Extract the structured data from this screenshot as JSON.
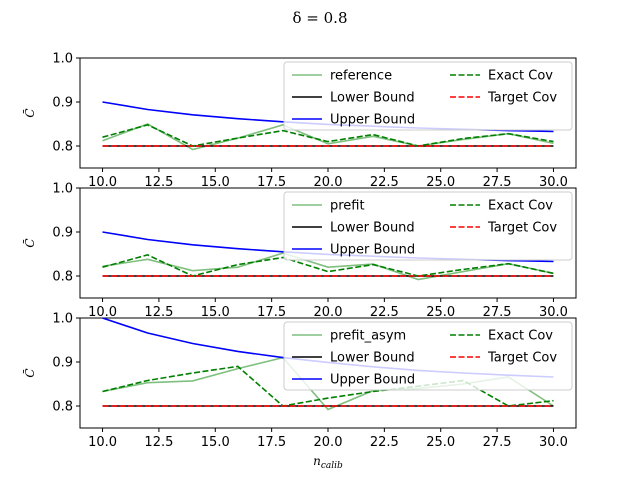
{
  "figure": {
    "title": "δ = 0.8",
    "xlabel": "n_calib",
    "xlabel_main": "n",
    "xlabel_sub": "calib",
    "ylabel": "C̄",
    "colors": {
      "exact": "#008000",
      "target": "#ff0000",
      "upper": "#0000ff",
      "lower": "#000000",
      "method": "#7fbf7f"
    }
  },
  "chart_data": [
    {
      "type": "line",
      "panel": "top",
      "xlim": [
        9,
        31
      ],
      "ylim": [
        0.75,
        1.0
      ],
      "xticks": [
        "10.0",
        "12.5",
        "15.0",
        "17.5",
        "20.0",
        "22.5",
        "25.0",
        "27.5",
        "30.0"
      ],
      "yticks": [
        "0.8",
        "0.9",
        "1.0"
      ],
      "legend_position": "upper right",
      "x": [
        10,
        12,
        14,
        16,
        18,
        20,
        22,
        24,
        26,
        28,
        30
      ],
      "series": [
        {
          "name": "reference",
          "style": "solid",
          "color": "#7fbf7f",
          "values": [
            0.812,
            0.85,
            0.792,
            0.818,
            0.848,
            0.805,
            0.822,
            0.8,
            0.815,
            0.828,
            0.806
          ]
        },
        {
          "name": "Lower Bound",
          "style": "solid",
          "color": "#000000",
          "values": [
            0.8,
            0.8,
            0.8,
            0.8,
            0.8,
            0.8,
            0.8,
            0.8,
            0.8,
            0.8,
            0.8
          ]
        },
        {
          "name": "Upper Bound",
          "style": "solid",
          "color": "#0000ff",
          "values": [
            0.9,
            0.883,
            0.871,
            0.862,
            0.855,
            0.849,
            0.845,
            0.841,
            0.838,
            0.835,
            0.833
          ]
        },
        {
          "name": "Exact Cov",
          "style": "dashed",
          "color": "#008000",
          "values": [
            0.82,
            0.848,
            0.8,
            0.818,
            0.835,
            0.81,
            0.826,
            0.8,
            0.817,
            0.828,
            0.81
          ]
        },
        {
          "name": "Target Cov",
          "style": "dashed",
          "color": "#ff0000",
          "values": [
            0.8,
            0.8,
            0.8,
            0.8,
            0.8,
            0.8,
            0.8,
            0.8,
            0.8,
            0.8,
            0.8
          ]
        }
      ]
    },
    {
      "type": "line",
      "panel": "middle",
      "xlim": [
        9,
        31
      ],
      "ylim": [
        0.75,
        1.0
      ],
      "xticks": [
        "10.0",
        "12.5",
        "15.0",
        "17.5",
        "20.0",
        "22.5",
        "25.0",
        "27.5",
        "30.0"
      ],
      "yticks": [
        "0.8",
        "0.9",
        "1.0"
      ],
      "legend_position": "upper right",
      "x": [
        10,
        12,
        14,
        16,
        18,
        20,
        22,
        24,
        26,
        28,
        30
      ],
      "series": [
        {
          "name": "prefit",
          "style": "solid",
          "color": "#7fbf7f",
          "values": [
            0.822,
            0.838,
            0.812,
            0.82,
            0.852,
            0.82,
            0.827,
            0.792,
            0.81,
            0.828,
            0.806
          ]
        },
        {
          "name": "Lower Bound",
          "style": "solid",
          "color": "#000000",
          "values": [
            0.8,
            0.8,
            0.8,
            0.8,
            0.8,
            0.8,
            0.8,
            0.8,
            0.8,
            0.8,
            0.8
          ]
        },
        {
          "name": "Upper Bound",
          "style": "solid",
          "color": "#0000ff",
          "values": [
            0.9,
            0.883,
            0.871,
            0.862,
            0.855,
            0.849,
            0.845,
            0.841,
            0.838,
            0.835,
            0.833
          ]
        },
        {
          "name": "Exact Cov",
          "style": "dashed",
          "color": "#008000",
          "values": [
            0.82,
            0.848,
            0.8,
            0.826,
            0.842,
            0.81,
            0.826,
            0.8,
            0.815,
            0.828,
            0.806
          ]
        },
        {
          "name": "Target Cov",
          "style": "dashed",
          "color": "#ff0000",
          "values": [
            0.8,
            0.8,
            0.8,
            0.8,
            0.8,
            0.8,
            0.8,
            0.8,
            0.8,
            0.8,
            0.8
          ]
        }
      ]
    },
    {
      "type": "line",
      "panel": "bottom",
      "xlim": [
        9,
        31
      ],
      "ylim": [
        0.75,
        1.0
      ],
      "xticks": [
        "10.0",
        "12.5",
        "15.0",
        "17.5",
        "20.0",
        "22.5",
        "25.0",
        "27.5",
        "30.0"
      ],
      "yticks": [
        "0.8",
        "0.9",
        "1.0"
      ],
      "legend_position": "upper right",
      "x": [
        10,
        12,
        14,
        16,
        18,
        20,
        22,
        24,
        26,
        28,
        30
      ],
      "series": [
        {
          "name": "prefit_asym",
          "style": "solid",
          "color": "#7fbf7f",
          "values": [
            0.833,
            0.853,
            0.857,
            0.885,
            0.91,
            0.792,
            0.835,
            0.84,
            0.85,
            0.866,
            0.8
          ]
        },
        {
          "name": "Lower Bound",
          "style": "solid",
          "color": "#000000",
          "values": [
            0.8,
            0.8,
            0.8,
            0.8,
            0.8,
            0.8,
            0.8,
            0.8,
            0.8,
            0.8,
            0.8
          ]
        },
        {
          "name": "Upper Bound",
          "style": "solid",
          "color": "#0000ff",
          "values": [
            1.0,
            0.966,
            0.942,
            0.924,
            0.91,
            0.899,
            0.889,
            0.881,
            0.875,
            0.87,
            0.866
          ]
        },
        {
          "name": "Exact Cov",
          "style": "dashed",
          "color": "#008000",
          "values": [
            0.833,
            0.858,
            0.875,
            0.89,
            0.8,
            0.818,
            0.833,
            0.845,
            0.858,
            0.8,
            0.812
          ]
        },
        {
          "name": "Target Cov",
          "style": "dashed",
          "color": "#ff0000",
          "values": [
            0.8,
            0.8,
            0.8,
            0.8,
            0.8,
            0.8,
            0.8,
            0.8,
            0.8,
            0.8,
            0.8
          ]
        }
      ]
    }
  ]
}
